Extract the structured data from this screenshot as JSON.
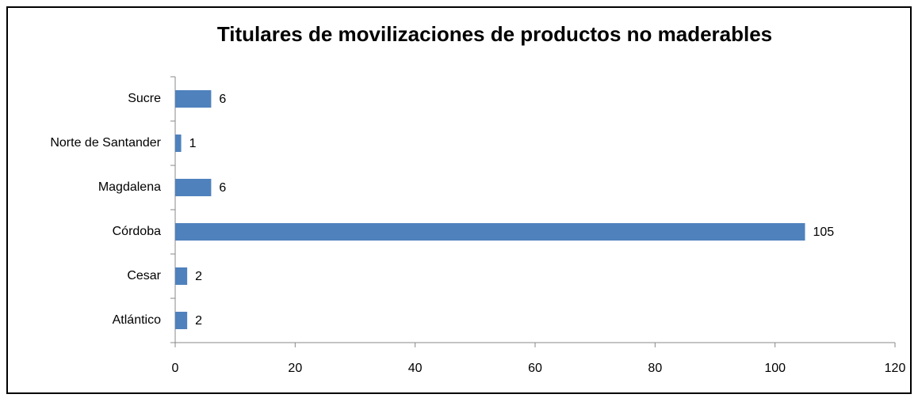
{
  "chart_data": {
    "type": "bar",
    "orientation": "horizontal",
    "title": "Titulares de movilizaciones de productos no maderables",
    "categories": [
      "Atlántico",
      "Cesar",
      "Córdoba",
      "Magdalena",
      "Norte de Santander",
      "Sucre"
    ],
    "values": [
      2,
      2,
      105,
      6,
      1,
      6
    ],
    "color": "#4f81bd",
    "xlim": [
      0,
      120
    ],
    "xticks": [
      0,
      20,
      40,
      60,
      80,
      100,
      120
    ],
    "grid": false
  }
}
